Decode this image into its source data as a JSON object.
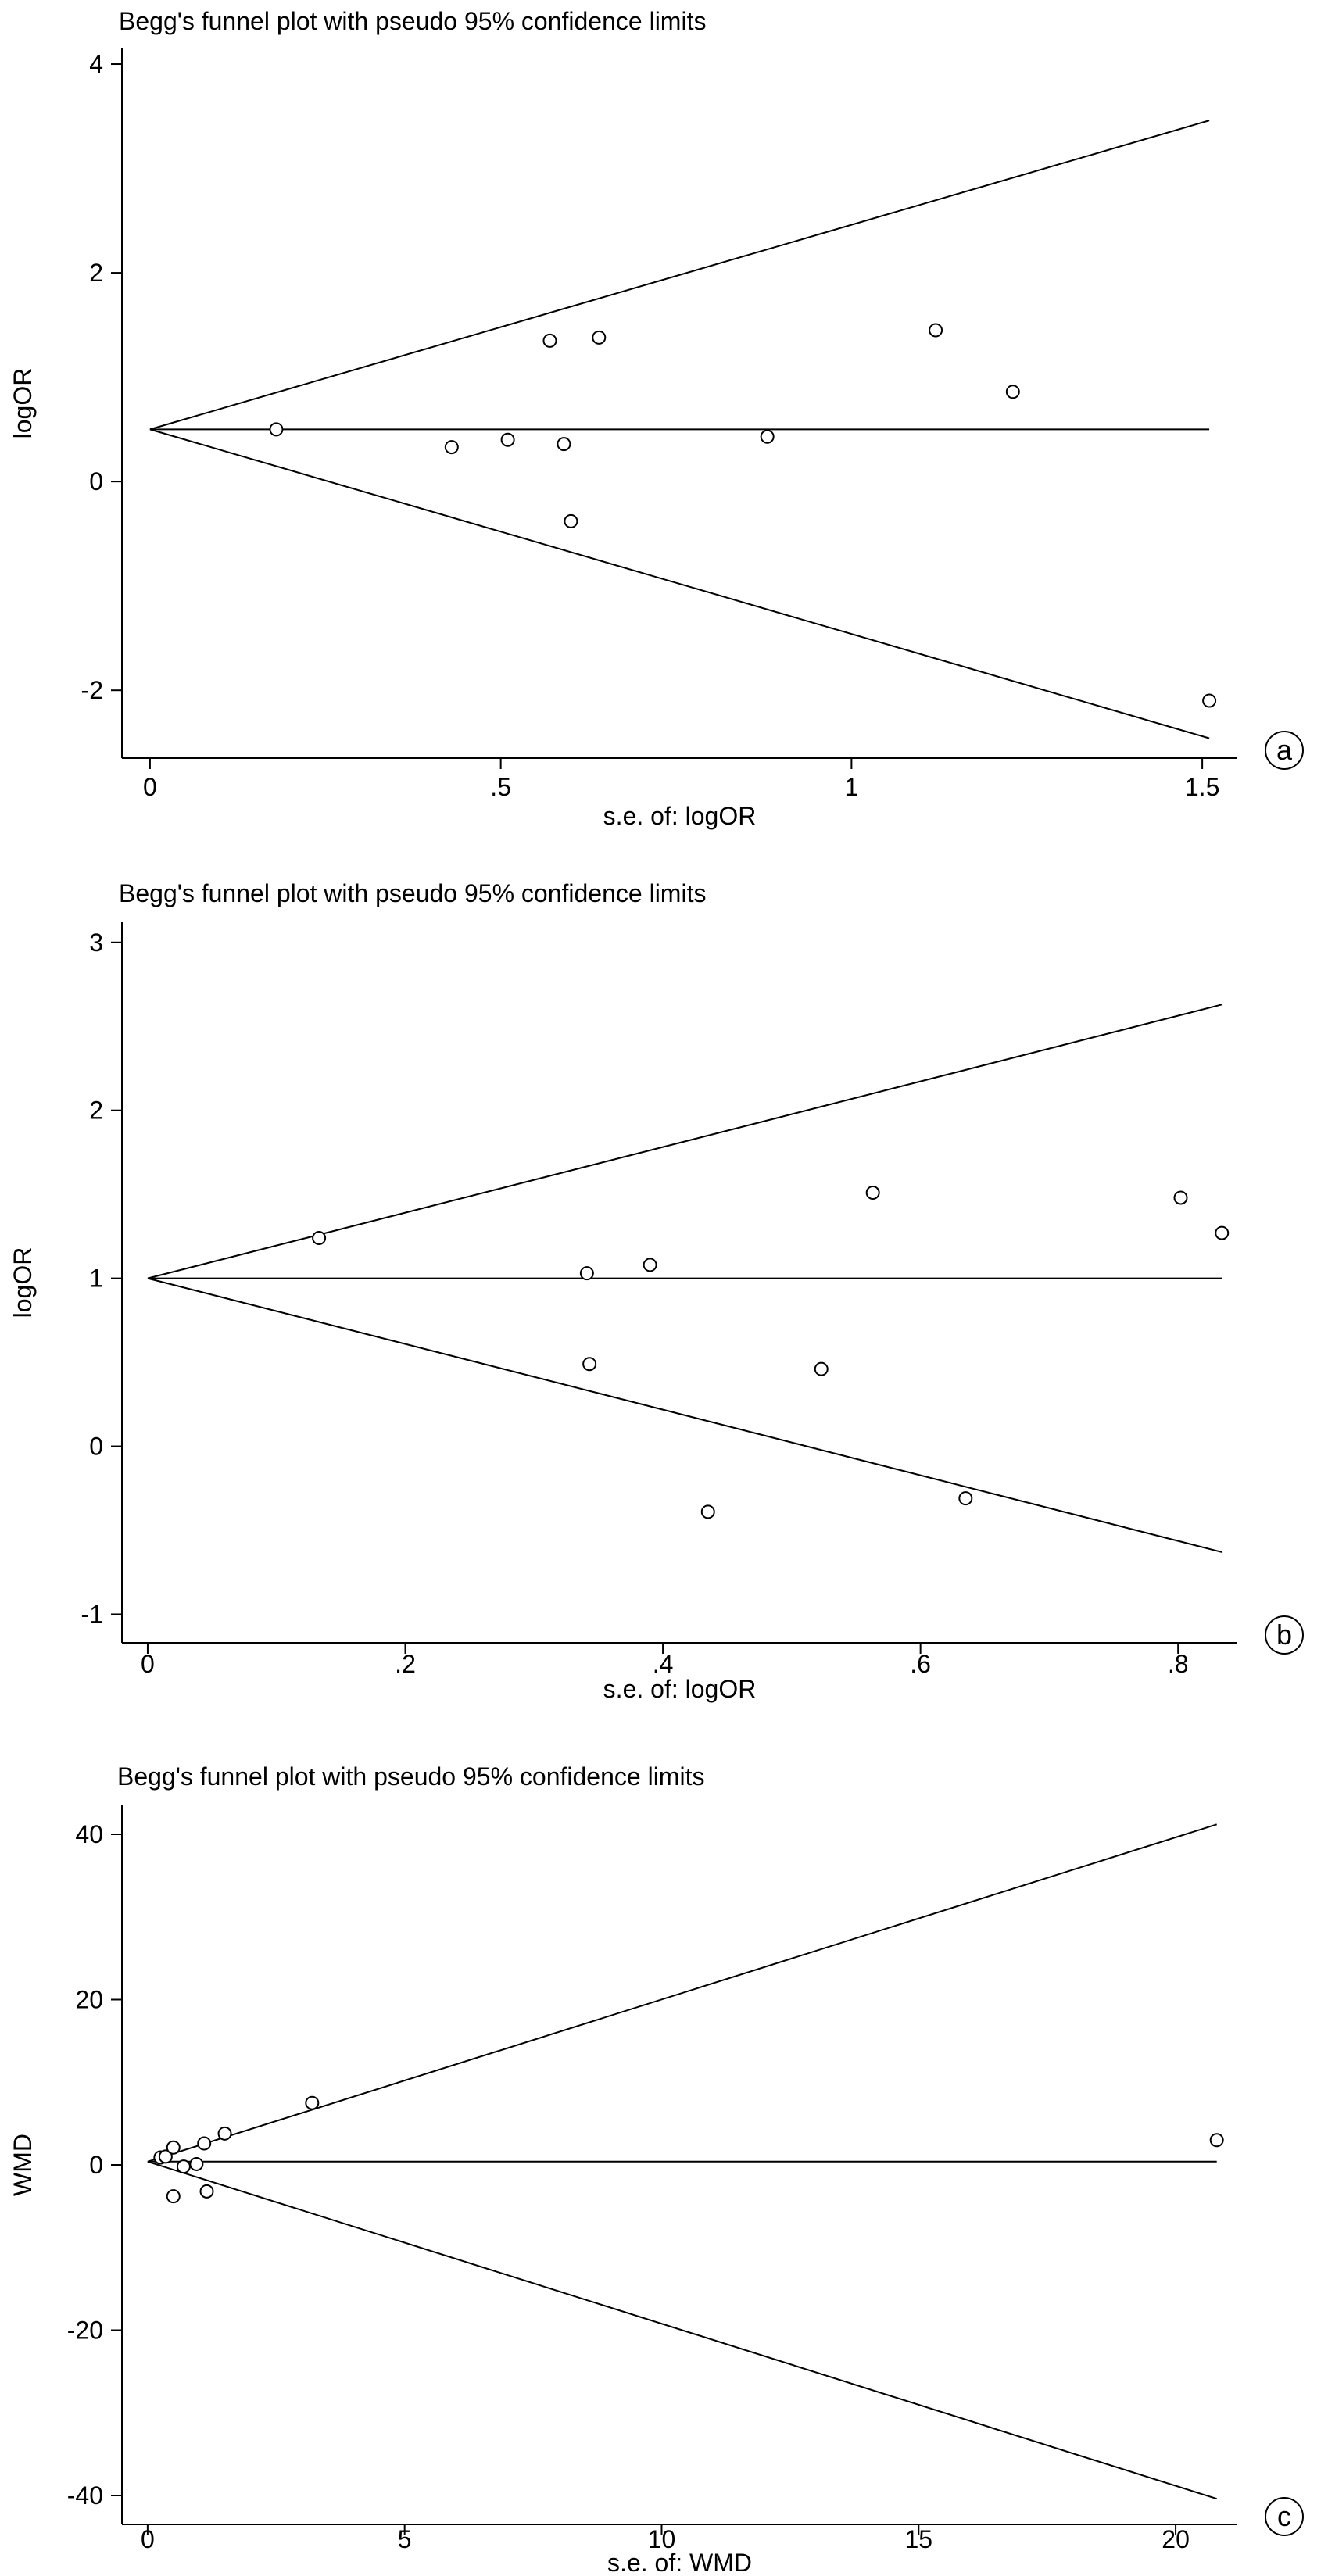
{
  "chart_data": [
    {
      "type": "scatter",
      "title": "Begg's funnel plot with pseudo 95% confidence limits",
      "xlabel": "s.e. of: logOR",
      "ylabel": "logOR",
      "panel_label": "a",
      "xlim": [
        -0.04,
        1.55
      ],
      "ylim": [
        -2.65,
        4.15
      ],
      "x_ticks": [
        0,
        0.5,
        1,
        1.5
      ],
      "x_tick_labels": [
        "0",
        ".5",
        "1",
        "1.5"
      ],
      "y_ticks": [
        -2,
        0,
        2,
        4
      ],
      "y_tick_labels": [
        "-2",
        "0",
        "2",
        "4"
      ],
      "pooled_estimate": 0.5,
      "funnel_limits": {
        "se_max": 1.51,
        "upper_end": 3.46,
        "lower_end": -2.46
      },
      "points": [
        {
          "x": 0.18,
          "y": 0.5
        },
        {
          "x": 0.43,
          "y": 0.33
        },
        {
          "x": 0.51,
          "y": 0.4
        },
        {
          "x": 0.57,
          "y": 1.35
        },
        {
          "x": 0.59,
          "y": 0.36
        },
        {
          "x": 0.6,
          "y": -0.38
        },
        {
          "x": 0.64,
          "y": 1.38
        },
        {
          "x": 0.88,
          "y": 0.43
        },
        {
          "x": 1.12,
          "y": 1.45
        },
        {
          "x": 1.23,
          "y": 0.86
        },
        {
          "x": 1.51,
          "y": -2.1
        }
      ]
    },
    {
      "type": "scatter",
      "title": "Begg's funnel plot with pseudo 95% confidence limits",
      "xlabel": "s.e. of: logOR",
      "ylabel": "logOR",
      "panel_label": "b",
      "xlim": [
        -0.02,
        0.846
      ],
      "ylim": [
        -1.17,
        3.12
      ],
      "x_ticks": [
        0,
        0.2,
        0.4,
        0.6,
        0.8
      ],
      "x_tick_labels": [
        "0",
        ".2",
        ".4",
        ".6",
        ".8"
      ],
      "y_ticks": [
        -1,
        0,
        1,
        2,
        3
      ],
      "y_tick_labels": [
        "-1",
        "0",
        "1",
        "2",
        "3"
      ],
      "pooled_estimate": 1.0,
      "funnel_limits": {
        "se_max": 0.834,
        "upper_end": 2.63,
        "lower_end": -0.63
      },
      "points": [
        {
          "x": 0.133,
          "y": 1.24
        },
        {
          "x": 0.341,
          "y": 1.03
        },
        {
          "x": 0.343,
          "y": 0.49
        },
        {
          "x": 0.39,
          "y": 1.08
        },
        {
          "x": 0.435,
          "y": -0.39
        },
        {
          "x": 0.523,
          "y": 0.46
        },
        {
          "x": 0.563,
          "y": 1.51
        },
        {
          "x": 0.635,
          "y": -0.31
        },
        {
          "x": 0.802,
          "y": 1.48
        },
        {
          "x": 0.834,
          "y": 1.27
        }
      ]
    },
    {
      "type": "scatter",
      "title": "Begg's funnel plot with pseudo 95% confidence limits",
      "xlabel": "s.e. of: WMD",
      "ylabel": "WMD",
      "panel_label": "c",
      "xlim": [
        -0.5,
        21.2
      ],
      "ylim": [
        -43.5,
        43.5
      ],
      "x_ticks": [
        0,
        5,
        10,
        15,
        20
      ],
      "x_tick_labels": [
        "0",
        "5",
        "10",
        "15",
        "20"
      ],
      "y_ticks": [
        -40,
        -20,
        0,
        20,
        40
      ],
      "y_tick_labels": [
        "-40",
        "-20",
        "0",
        "20",
        "40"
      ],
      "pooled_estimate": 0.4,
      "funnel_limits": {
        "se_max": 20.8,
        "upper_end": 41.2,
        "lower_end": -40.4
      },
      "points": [
        {
          "x": 0.25,
          "y": 0.9
        },
        {
          "x": 0.35,
          "y": 1.0
        },
        {
          "x": 0.5,
          "y": 2.1
        },
        {
          "x": 0.5,
          "y": -3.8
        },
        {
          "x": 0.7,
          "y": -0.2
        },
        {
          "x": 0.95,
          "y": 0.1
        },
        {
          "x": 1.1,
          "y": 2.6
        },
        {
          "x": 1.15,
          "y": -3.2
        },
        {
          "x": 1.5,
          "y": 3.8
        },
        {
          "x": 3.2,
          "y": 7.5
        },
        {
          "x": 20.8,
          "y": 3.0
        }
      ]
    }
  ]
}
